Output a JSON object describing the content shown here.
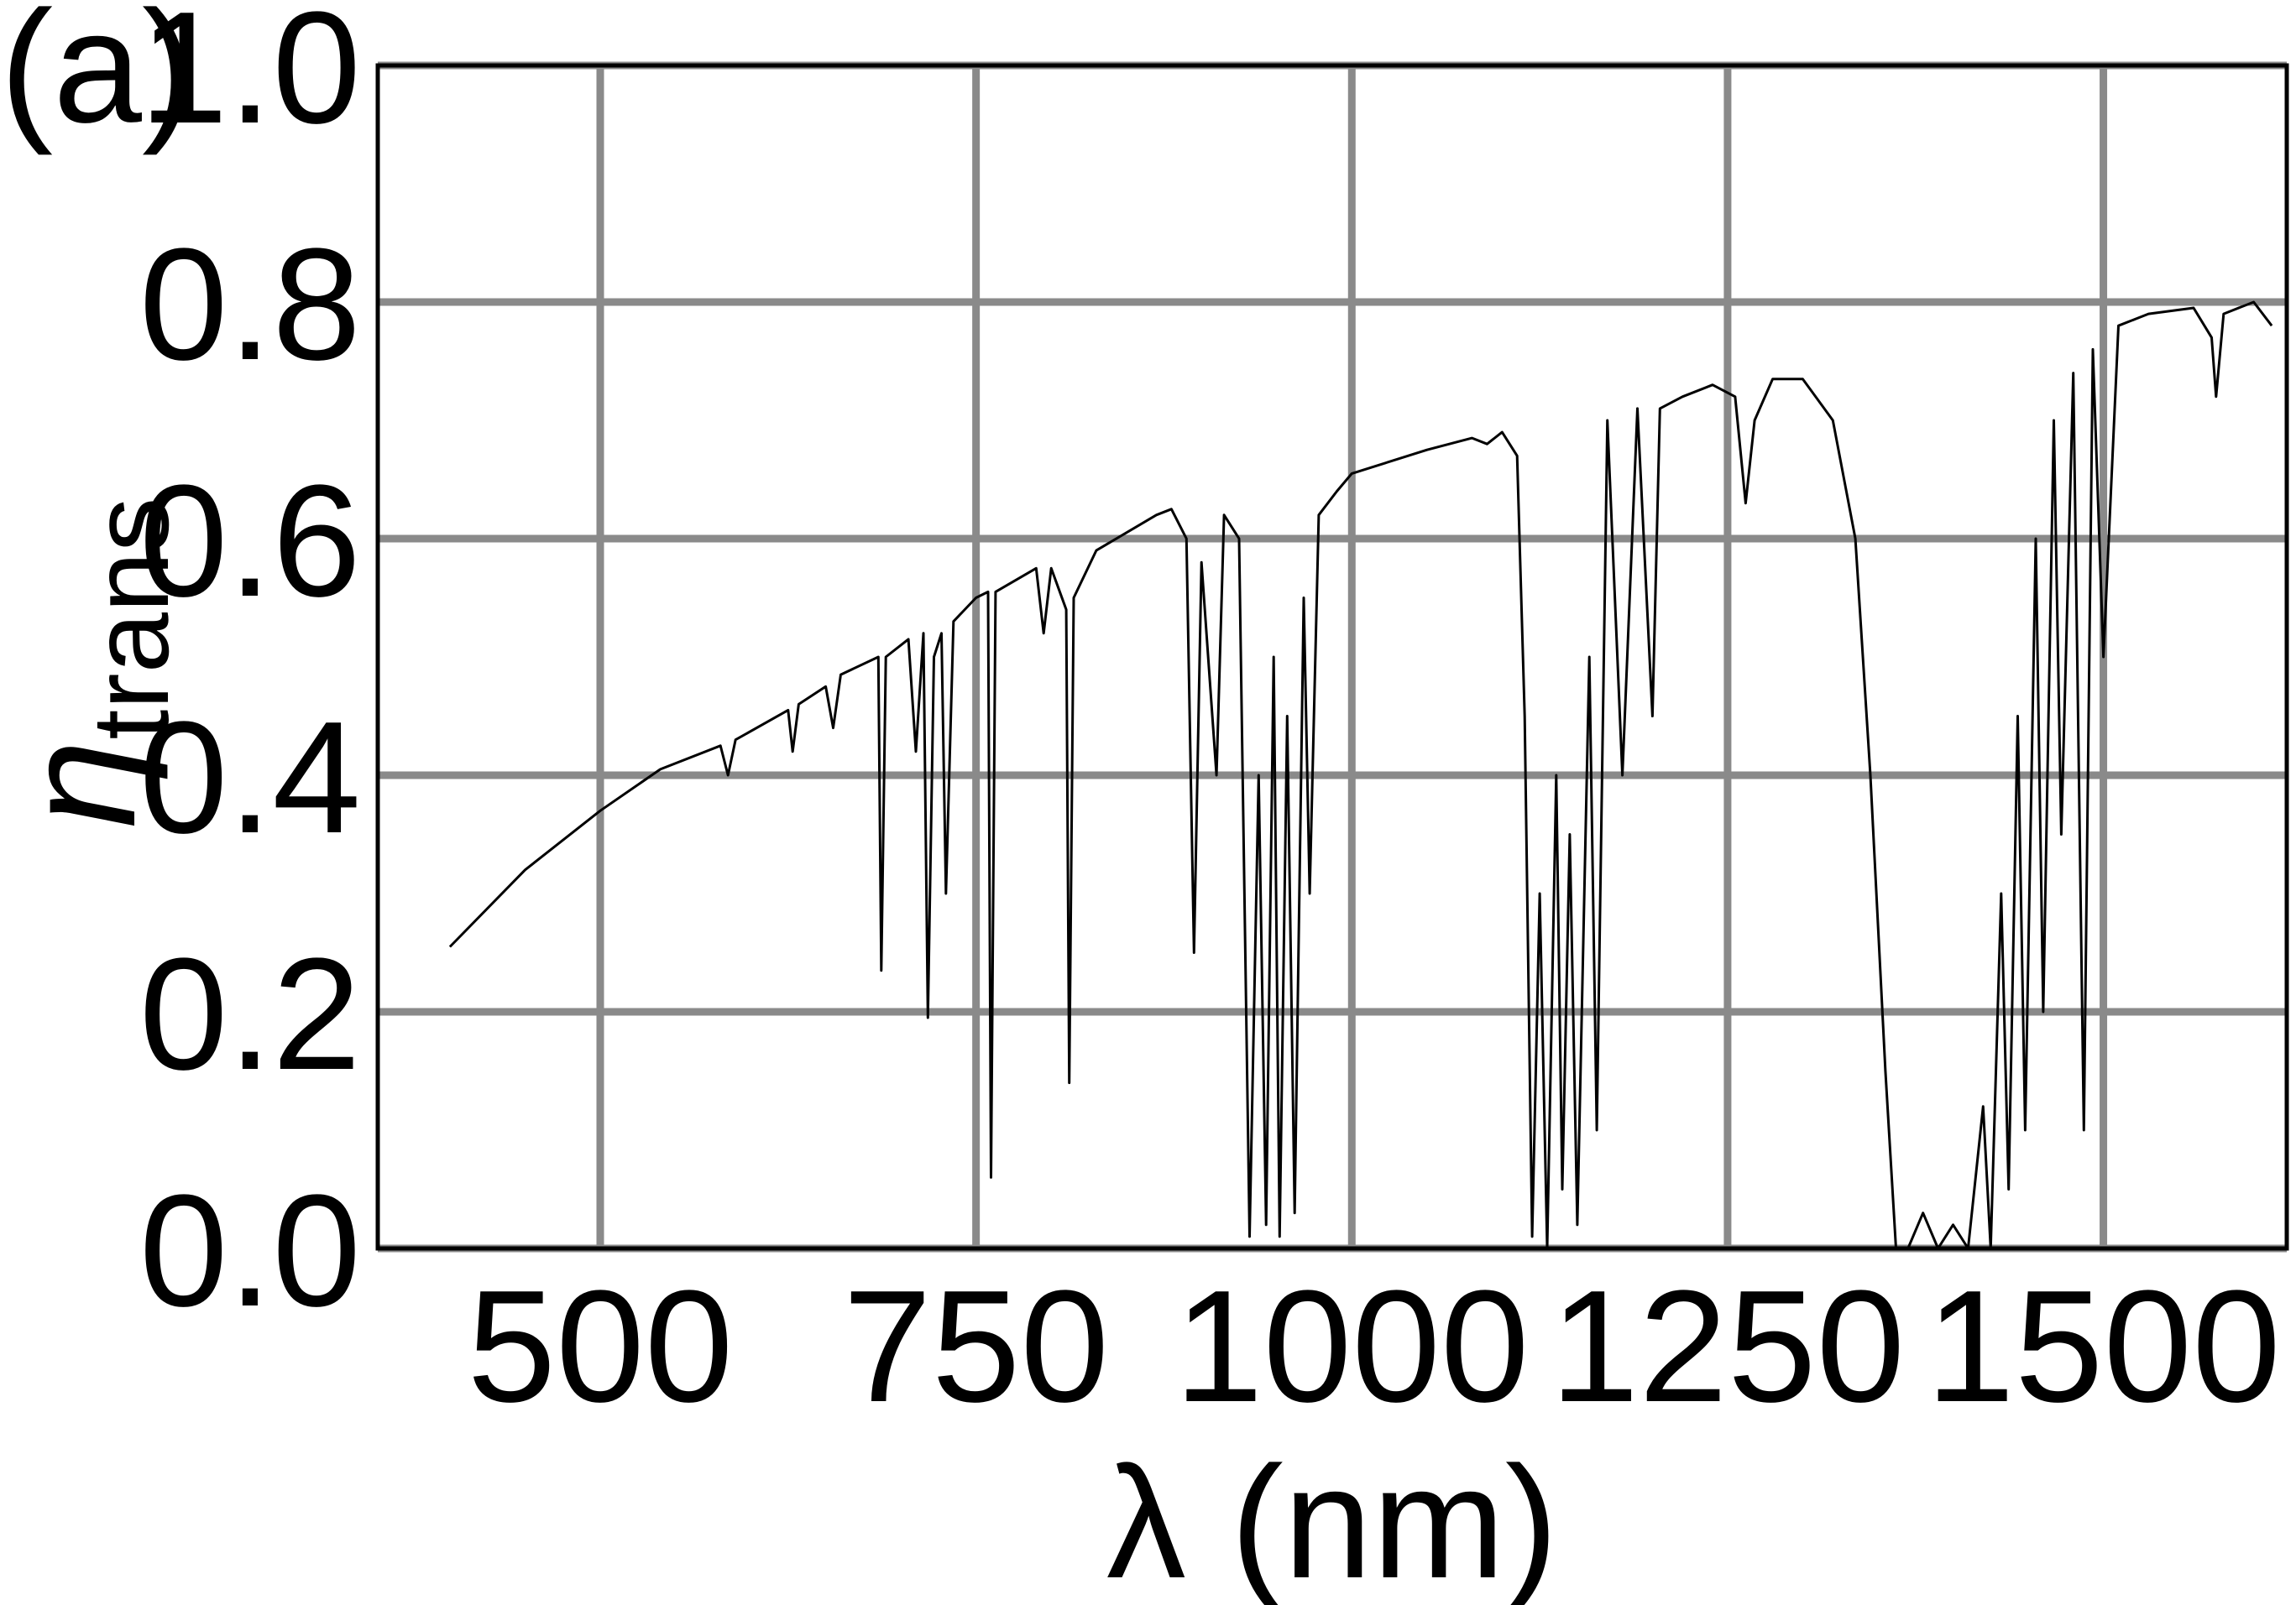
{
  "chart_data": {
    "type": "line",
    "panel_label": "(a)",
    "xlabel": "λ (nm)",
    "ylabel": "η",
    "ylabel_sub": "trans",
    "xlim": [
      352,
      1622
    ],
    "ylim": [
      0,
      1
    ],
    "xticks": [
      500,
      750,
      1000,
      1250,
      1500
    ],
    "yticks": [
      {
        "value": 0,
        "label": "0.0"
      },
      0.2,
      0.4,
      0.6,
      0.8,
      {
        "value": 1,
        "label": "1.0"
      }
    ],
    "grid": true,
    "color": "#000000",
    "x": [
      400,
      450,
      500,
      540,
      580,
      585,
      590,
      625,
      628,
      632,
      650,
      655,
      660,
      685,
      687,
      690,
      705,
      710,
      715,
      718,
      722,
      727,
      730,
      735,
      750,
      758,
      760,
      763,
      790,
      795,
      800,
      810,
      812,
      815,
      830,
      870,
      880,
      890,
      895,
      900,
      910,
      915,
      925,
      932,
      938,
      943,
      948,
      952,
      957,
      962,
      968,
      972,
      978,
      990,
      1000,
      1050,
      1080,
      1090,
      1100,
      1110,
      1115,
      1120,
      1125,
      1130,
      1136,
      1140,
      1145,
      1150,
      1158,
      1163,
      1170,
      1180,
      1190,
      1200,
      1205,
      1220,
      1240,
      1255,
      1262,
      1268,
      1280,
      1300,
      1320,
      1335,
      1345,
      1355,
      1362,
      1370,
      1380,
      1390,
      1400,
      1410,
      1420,
      1425,
      1432,
      1437,
      1443,
      1448,
      1455,
      1460,
      1467,
      1472,
      1480,
      1487,
      1493,
      1500,
      1510,
      1530,
      1560,
      1572,
      1575,
      1580,
      1600,
      1612
    ],
    "values": [
      0.255,
      0.32,
      0.37,
      0.405,
      0.425,
      0.4,
      0.43,
      0.455,
      0.42,
      0.46,
      0.475,
      0.44,
      0.485,
      0.5,
      0.235,
      0.5,
      0.515,
      0.42,
      0.52,
      0.195,
      0.5,
      0.52,
      0.3,
      0.53,
      0.55,
      0.555,
      0.06,
      0.555,
      0.575,
      0.52,
      0.575,
      0.54,
      0.14,
      0.55,
      0.59,
      0.62,
      0.625,
      0.6,
      0.25,
      0.58,
      0.4,
      0.62,
      0.6,
      0.01,
      0.4,
      0.02,
      0.5,
      0.01,
      0.45,
      0.03,
      0.55,
      0.3,
      0.62,
      0.64,
      0.655,
      0.675,
      0.685,
      0.68,
      0.69,
      0.67,
      0.45,
      0.01,
      0.3,
      0.0,
      0.4,
      0.05,
      0.35,
      0.02,
      0.5,
      0.1,
      0.7,
      0.4,
      0.71,
      0.45,
      0.71,
      0.72,
      0.73,
      0.72,
      0.63,
      0.7,
      0.735,
      0.735,
      0.7,
      0.6,
      0.4,
      0.15,
      0.0,
      0.0,
      0.03,
      0.0,
      0.02,
      0.0,
      0.12,
      0.0,
      0.3,
      0.05,
      0.45,
      0.1,
      0.6,
      0.2,
      0.7,
      0.35,
      0.74,
      0.1,
      0.76,
      0.5,
      0.78,
      0.79,
      0.795,
      0.77,
      0.72,
      0.79,
      0.8,
      0.78
    ]
  }
}
